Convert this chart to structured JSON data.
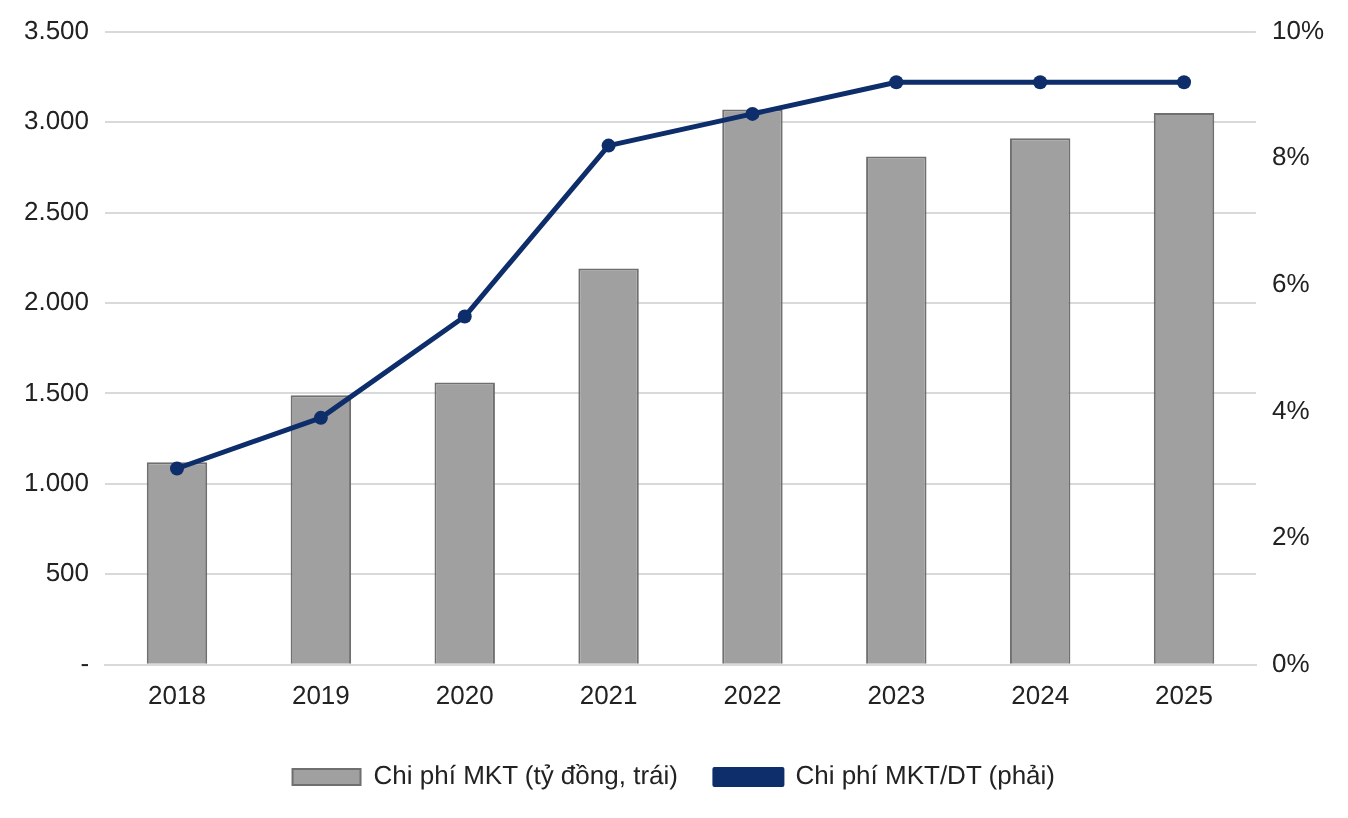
{
  "chart_data": {
    "type": "bar",
    "categories": [
      "2018",
      "2019",
      "2020",
      "2021",
      "2022",
      "2023",
      "2024",
      "2025"
    ],
    "series": [
      {
        "name": "Chi phí MKT (tỷ đồng, trái)",
        "color": "#a0a0a0",
        "values": [
          1120,
          1490,
          1560,
          2190,
          3070,
          2810,
          2910,
          3050
        ]
      },
      {
        "name": "Chi phí MKT/DT (phải)",
        "type": "line",
        "axis": "y2",
        "color": "#0d2d6b",
        "values": [
          3.1,
          3.9,
          5.5,
          8.2,
          8.7,
          9.2,
          9.2,
          9.2
        ]
      }
    ],
    "ylim": [
      0,
      3500
    ],
    "yticks": [
      {
        "value": 0,
        "label": "-"
      },
      {
        "value": 500,
        "label": "500"
      },
      {
        "value": 1000,
        "label": "1.000"
      },
      {
        "value": 1500,
        "label": "1.500"
      },
      {
        "value": 2000,
        "label": "2.000"
      },
      {
        "value": 2500,
        "label": "2.500"
      },
      {
        "value": 3000,
        "label": "3.000"
      },
      {
        "value": 3500,
        "label": "3.500"
      }
    ],
    "y2lim": [
      0,
      10
    ],
    "y2ticks": [
      {
        "value": 0,
        "label": "0%"
      },
      {
        "value": 2,
        "label": "2%"
      },
      {
        "value": 4,
        "label": "4%"
      },
      {
        "value": 6,
        "label": "6%"
      },
      {
        "value": 8,
        "label": "8%"
      },
      {
        "value": 10,
        "label": "10%"
      }
    ],
    "grid": "y",
    "legend": "bottom",
    "marker": "circle",
    "line_style": "solid"
  }
}
